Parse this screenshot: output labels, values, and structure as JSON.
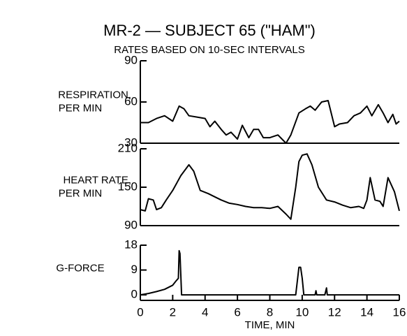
{
  "title": "MR-2 — SUBJECT 65 (\"HAM\")",
  "subtitle": "RATES BASED ON 10-SEC INTERVALS",
  "chart_data": [
    {
      "type": "line",
      "ylabel": [
        "RESPIRATION,",
        "PER MIN"
      ],
      "color": "#000000",
      "xlim": [
        0,
        16
      ],
      "ylim": [
        30,
        90
      ],
      "yticks": [
        30,
        60,
        90
      ],
      "x": [
        0,
        0.5,
        1,
        1.5,
        2,
        2.4,
        2.7,
        3,
        3.5,
        4,
        4.3,
        4.6,
        5,
        5.3,
        5.6,
        6,
        6.3,
        6.7,
        7,
        7.3,
        7.6,
        8,
        8.5,
        9,
        9.3,
        9.8,
        10.2,
        10.5,
        10.8,
        11.2,
        11.6,
        12,
        12.3,
        12.8,
        13.2,
        13.6,
        14,
        14.3,
        14.7,
        15,
        15.3,
        15.6,
        15.8,
        16
      ],
      "values": [
        45,
        45,
        48,
        50,
        46,
        57,
        55,
        50,
        49,
        48,
        42,
        46,
        40,
        36,
        38,
        33,
        43,
        34,
        40,
        40,
        34,
        34,
        36,
        30,
        36,
        52,
        55,
        57,
        54,
        60,
        61,
        42,
        44,
        45,
        50,
        52,
        57,
        50,
        58,
        52,
        45,
        51,
        44,
        46
      ]
    },
    {
      "type": "line",
      "ylabel": [
        "HEART RATE,",
        "PER MIN"
      ],
      "color": "#000000",
      "xlim": [
        0,
        16
      ],
      "ylim": [
        90,
        210
      ],
      "yticks": [
        90,
        150,
        210
      ],
      "x": [
        0,
        0.3,
        0.5,
        0.8,
        1,
        1.3,
        1.6,
        2,
        2.5,
        3,
        3.3,
        3.7,
        4.2,
        4.6,
        5,
        5.5,
        6,
        6.5,
        7,
        7.5,
        8,
        8.5,
        9,
        9.3,
        9.6,
        9.8,
        10,
        10.3,
        10.6,
        11,
        11.5,
        12,
        12.5,
        13,
        13.5,
        13.8,
        14,
        14.2,
        14.5,
        14.8,
        15,
        15.3,
        15.7,
        16
      ],
      "values": [
        115,
        113,
        132,
        130,
        115,
        118,
        130,
        145,
        168,
        185,
        175,
        145,
        140,
        135,
        130,
        125,
        123,
        120,
        118,
        118,
        117,
        120,
        108,
        100,
        150,
        190,
        200,
        202,
        185,
        150,
        130,
        127,
        122,
        118,
        120,
        117,
        130,
        165,
        130,
        128,
        120,
        165,
        143,
        113
      ]
    },
    {
      "type": "line",
      "ylabel": [
        "G-FORCE"
      ],
      "color": "#000000",
      "xlim": [
        0,
        16
      ],
      "ylim": [
        -2,
        18
      ],
      "yticks": [
        0,
        9,
        18
      ],
      "xticks": [
        0,
        2,
        4,
        6,
        8,
        10,
        12,
        14,
        16
      ],
      "xlabel": "TIME, MIN",
      "x": [
        0,
        0.5,
        1,
        1.5,
        2,
        2.2,
        2.35,
        2.4,
        2.45,
        2.55,
        3,
        9.6,
        9.8,
        9.9,
        10,
        10.1,
        10.8,
        10.85,
        10.9,
        11.4,
        11.5,
        11.55,
        16
      ],
      "values": [
        0,
        0.5,
        1.2,
        2,
        3.5,
        5,
        6,
        16,
        15,
        0,
        0,
        0,
        10,
        10,
        6,
        0,
        0,
        1.5,
        0,
        0,
        2.5,
        0,
        0
      ]
    }
  ]
}
